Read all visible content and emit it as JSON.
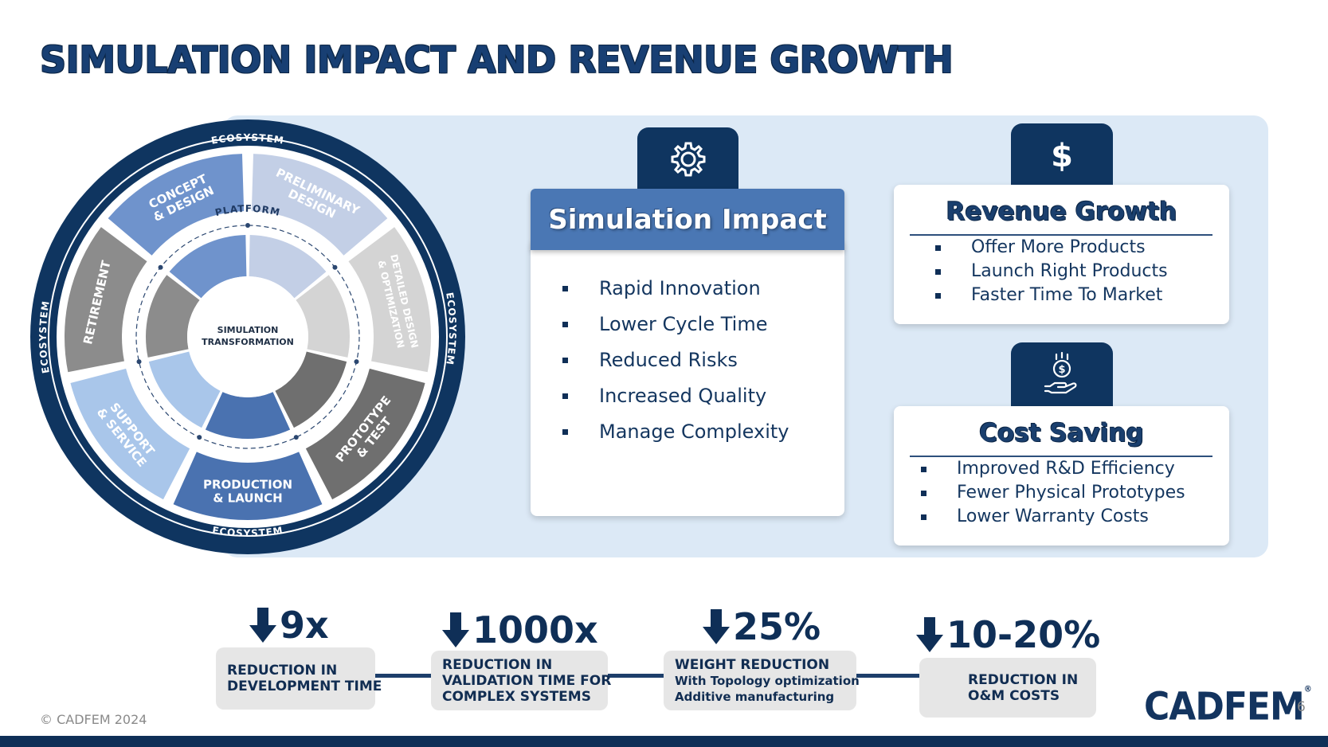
{
  "page": {
    "title": "SIMULATION IMPACT AND REVENUE GROWTH"
  },
  "wheel": {
    "outer_label": "ECOSYSTEM",
    "inner_label": "PLATFORM",
    "center_line1": "SIMULATION",
    "center_line2": "TRANSFORMATION",
    "stages": [
      {
        "line1": "CONCEPT",
        "line2": "& DESIGN",
        "color": "#6f93cc"
      },
      {
        "line1": "PRELIMINARY",
        "line2": "DESIGN",
        "color": "#c3cfe6"
      },
      {
        "line1": "DETAILED DESIGN",
        "line2": "& OPTIMIZATION",
        "color": "#d4d4d4"
      },
      {
        "line1": "PROTOTYPE",
        "line2": "& TEST",
        "color": "#6f6f6f"
      },
      {
        "line1": "PRODUCTION",
        "line2": "& LAUNCH",
        "color": "#4a72b0"
      },
      {
        "line1": "SUPPORT",
        "line2": "& SERVICE",
        "color": "#a9c6ea"
      },
      {
        "line1": "RETIREMENT",
        "line2": "",
        "color": "#8c8c8c"
      }
    ]
  },
  "impact": {
    "heading": "Simulation Impact",
    "icon": "gear-icon",
    "items": [
      "Rapid Innovation",
      "Lower Cycle Time",
      "Reduced Risks",
      "Increased Quality",
      "Manage Complexity"
    ]
  },
  "revenue": {
    "heading": "Revenue Growth",
    "icon": "dollar-icon",
    "items": [
      "Offer More Products",
      "Launch Right Products",
      "Faster Time To Market"
    ]
  },
  "cost": {
    "heading": "Cost Saving",
    "icon": "hand-coin-icon",
    "items": [
      "Improved R&D Efficiency",
      "Fewer Physical Prototypes",
      "Lower Warranty Costs"
    ]
  },
  "stats": [
    {
      "value": "9x",
      "lines": [
        "REDUCTION IN",
        "DEVELOPMENT TIME"
      ]
    },
    {
      "value": "1000x",
      "lines": [
        "REDUCTION IN",
        "VALIDATION TIME FOR",
        "COMPLEX SYSTEMS"
      ]
    },
    {
      "value": "25%",
      "lines": [
        "WEIGHT REDUCTION",
        "With Topology optimization",
        "Additive manufacturing"
      ]
    },
    {
      "value": "10-20%",
      "lines": [
        "REDUCTION IN",
        "O&M COSTS"
      ]
    }
  ],
  "footer": {
    "copyright": "© CADFEM 2024",
    "logo": "CADFEM",
    "page_number": "6"
  },
  "colors": {
    "navy": "#0f2f57",
    "panel": "#dce9f6",
    "header_blue": "#4a77b4"
  }
}
